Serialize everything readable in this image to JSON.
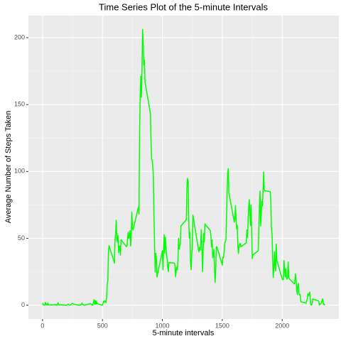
{
  "chart_data": {
    "type": "line",
    "title": "Time Series Plot of the 5-minute Intervals",
    "x_label": "5-minute intervals",
    "y_label": "Average Number of Steps Taken",
    "xlim": [
      -117.75,
      2472.75
    ],
    "ylim": [
      -10.3,
      216.5
    ],
    "xticks": [
      0,
      500,
      1000,
      1500,
      2000
    ],
    "yticks": [
      0,
      50,
      100,
      150,
      200
    ],
    "grid": true,
    "series": [
      {
        "name": "steps",
        "color": "#00ff00",
        "x": [
          0,
          5,
          10,
          15,
          20,
          25,
          30,
          35,
          40,
          45,
          50,
          55,
          100,
          105,
          110,
          115,
          120,
          125,
          130,
          135,
          140,
          150,
          200,
          215,
          220,
          230,
          250,
          255,
          300,
          320,
          330,
          335,
          340,
          345,
          350,
          400,
          415,
          420,
          430,
          435,
          440,
          445,
          450,
          455,
          500,
          505,
          510,
          515,
          520,
          530,
          535,
          540,
          545,
          550,
          555,
          600,
          605,
          610,
          615,
          620,
          625,
          630,
          635,
          640,
          645,
          650,
          655,
          700,
          705,
          710,
          715,
          720,
          725,
          730,
          735,
          740,
          745,
          750,
          755,
          800,
          805,
          810,
          815,
          820,
          825,
          830,
          835,
          840,
          845,
          850,
          855,
          900,
          905,
          910,
          915,
          920,
          925,
          930,
          935,
          940,
          945,
          950,
          955,
          1000,
          1005,
          1010,
          1015,
          1020,
          1025,
          1030,
          1035,
          1040,
          1045,
          1050,
          1055,
          1100,
          1105,
          1110,
          1115,
          1120,
          1125,
          1130,
          1135,
          1140,
          1145,
          1150,
          1155,
          1200,
          1205,
          1210,
          1215,
          1220,
          1225,
          1230,
          1235,
          1240,
          1245,
          1250,
          1255,
          1300,
          1305,
          1310,
          1315,
          1320,
          1325,
          1330,
          1335,
          1340,
          1345,
          1350,
          1355,
          1400,
          1405,
          1410,
          1415,
          1420,
          1425,
          1430,
          1435,
          1440,
          1445,
          1450,
          1455,
          1500,
          1505,
          1510,
          1515,
          1520,
          1525,
          1530,
          1535,
          1540,
          1545,
          1550,
          1555,
          1600,
          1605,
          1610,
          1615,
          1620,
          1625,
          1630,
          1635,
          1640,
          1645,
          1650,
          1655,
          1700,
          1705,
          1710,
          1715,
          1720,
          1725,
          1730,
          1735,
          1740,
          1745,
          1750,
          1755,
          1800,
          1805,
          1810,
          1815,
          1820,
          1825,
          1830,
          1835,
          1840,
          1845,
          1850,
          1855,
          1900,
          1905,
          1910,
          1915,
          1920,
          1925,
          1930,
          1935,
          1940,
          1945,
          1950,
          1955,
          2000,
          2005,
          2010,
          2015,
          2020,
          2025,
          2030,
          2035,
          2040,
          2045,
          2050,
          2055,
          2100,
          2105,
          2110,
          2115,
          2120,
          2125,
          2130,
          2135,
          2140,
          2145,
          2150,
          2155,
          2200,
          2205,
          2210,
          2215,
          2220,
          2225,
          2230,
          2235,
          2240,
          2245,
          2250,
          2255,
          2300,
          2305,
          2310,
          2315,
          2320,
          2325,
          2330,
          2335,
          2340,
          2345,
          2350,
          2355
        ],
        "values": [
          1.7,
          0.3,
          0.1,
          0.2,
          0.1,
          2.1,
          0.5,
          0.9,
          0,
          1.5,
          0.3,
          0.1,
          0.3,
          0.7,
          0.2,
          0.3,
          0,
          1.1,
          1.8,
          0.2,
          0.2,
          0.3,
          0,
          0.8,
          0.3,
          0,
          1.5,
          0.9,
          0,
          0.2,
          1.6,
          0.6,
          0.5,
          0.1,
          0,
          1.2,
          0,
          0.3,
          4.1,
          0.7,
          3.5,
          0.8,
          3.1,
          1.1,
          0,
          1.6,
          3,
          2.2,
          3.3,
          2.1,
          6.1,
          16,
          18.3,
          39.5,
          44.5,
          31.5,
          49.3,
          53.8,
          63.5,
          50,
          47.1,
          52.2,
          39.3,
          44,
          44.2,
          37.4,
          49,
          43.8,
          44.4,
          50.5,
          54.5,
          49.9,
          51,
          55.7,
          44.3,
          52.3,
          69.5,
          57.8,
          56.2,
          73.4,
          68.2,
          129.4,
          157.5,
          171.2,
          155.4,
          177.3,
          206.2,
          195.9,
          179.6,
          183.4,
          167,
          143.5,
          124,
          109.1,
          108.1,
          103.7,
          95.9,
          66.2,
          45.2,
          24.8,
          38.8,
          35,
          21.1,
          40.6,
          26.5,
          42.4,
          52.7,
          38.9,
          50.8,
          44.3,
          37.4,
          34.7,
          28.3,
          25.1,
          31.9,
          31.4,
          29.7,
          21.3,
          25.5,
          28.4,
          26.5,
          33.4,
          50,
          42,
          44.6,
          46,
          59.2,
          63.9,
          87.7,
          94.8,
          92.8,
          63.4,
          50.2,
          54.5,
          32.4,
          26.5,
          37.7,
          45.1,
          67.3,
          42.3,
          39.9,
          43.3,
          41,
          46.2,
          56.4,
          42.8,
          25.1,
          40,
          53.5,
          47.3,
          60.8,
          55.8,
          52,
          43.6,
          48.7,
          35.5,
          37.5,
          41.8,
          27.5,
          17.1,
          26.1,
          43.6,
          43.8,
          30,
          36.1,
          35.5,
          38.8,
          46,
          47.8,
          48.1,
          65.3,
          82.9,
          98.7,
          102.1,
          84,
          62.1,
          64.1,
          74.5,
          63.2,
          56.9,
          59.8,
          43.9,
          38.6,
          44.7,
          45.5,
          46.2,
          43.7,
          46.6,
          56.3,
          50.7,
          61.2,
          72.7,
          78.9,
          68.9,
          59.7,
          75.1,
          56.5,
          34.8,
          37.5,
          40.7,
          58,
          74.7,
          85.3,
          59.3,
          67.8,
          77.7,
          74.2,
          85.3,
          99.5,
          86.6,
          85.6,
          84.9,
          77.8,
          58,
          53.4,
          36.3,
          20.7,
          27.4,
          40,
          30.2,
          25.5,
          45.7,
          33.5,
          19.6,
          19,
          19.3,
          33.3,
          26.8,
          21.2,
          27.3,
          21.3,
          19.5,
          21.3,
          32.3,
          20.2,
          15.9,
          17.2,
          23.5,
          19.2,
          12.5,
          8,
          14.7,
          16.3,
          8.7,
          7.8,
          8.1,
          2.6,
          1.5,
          3.7,
          4.8,
          8.5,
          7.1,
          8.7,
          9.8,
          2.2,
          0.3,
          0.1,
          1.6,
          4.6,
          3.3,
          2.8,
          0,
          0.8,
          1,
          1.6,
          2.6,
          4.7,
          3.3,
          0.6,
          0.2,
          1.1
        ]
      }
    ]
  }
}
